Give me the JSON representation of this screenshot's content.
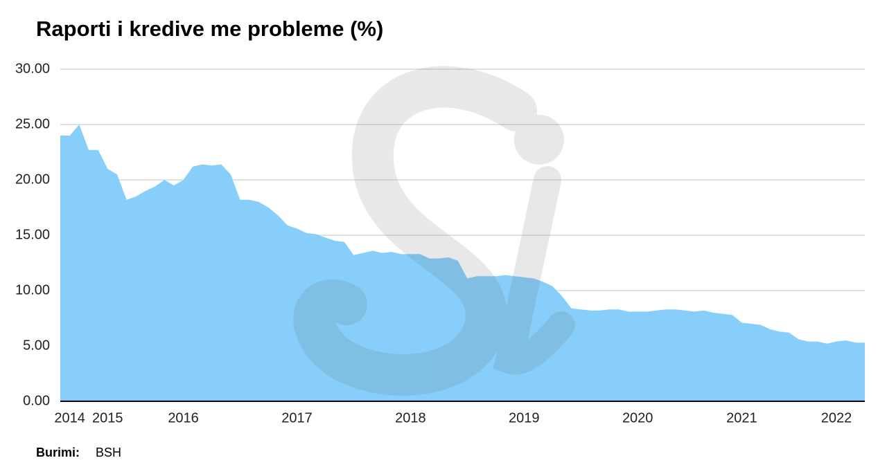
{
  "chart_data": {
    "type": "area",
    "title": "Raporti i kredive me probleme (%)",
    "source_label": "Burimi:",
    "source": "BSH",
    "color": "#87cffa",
    "grid": true,
    "ylim": [
      0,
      30
    ],
    "yticks": [
      {
        "value": 0,
        "label": "0.00"
      },
      {
        "value": 5,
        "label": "5.00"
      },
      {
        "value": 10,
        "label": "10.00"
      },
      {
        "value": 15,
        "label": "15.00"
      },
      {
        "value": 20,
        "label": "20.00"
      },
      {
        "value": 25,
        "label": "25.00"
      },
      {
        "value": 30,
        "label": "30.00"
      }
    ],
    "categories": [
      null,
      "2014",
      null,
      null,
      null,
      "2015",
      null,
      null,
      null,
      null,
      null,
      null,
      null,
      "2016",
      null,
      null,
      null,
      null,
      null,
      null,
      null,
      null,
      null,
      null,
      null,
      "2017",
      null,
      null,
      null,
      null,
      null,
      null,
      null,
      null,
      null,
      null,
      null,
      "2018",
      null,
      null,
      null,
      null,
      null,
      null,
      null,
      null,
      null,
      null,
      null,
      "2019",
      null,
      null,
      null,
      null,
      null,
      null,
      null,
      null,
      null,
      null,
      null,
      "2020",
      null,
      null,
      null,
      null,
      null,
      null,
      null,
      null,
      null,
      null,
      "2021",
      null,
      null,
      null,
      null,
      null,
      null,
      null,
      null,
      null,
      "2022",
      null,
      null,
      null
    ],
    "values": [
      24.0,
      24.0,
      25.0,
      22.7,
      22.7,
      21.0,
      20.5,
      18.2,
      18.5,
      19.0,
      19.4,
      20.0,
      19.5,
      20.0,
      21.2,
      21.4,
      21.3,
      21.4,
      20.5,
      18.2,
      18.2,
      18.0,
      17.5,
      16.8,
      15.9,
      15.6,
      15.2,
      15.1,
      14.8,
      14.5,
      14.4,
      13.2,
      13.4,
      13.6,
      13.4,
      13.5,
      13.3,
      13.3,
      13.3,
      12.9,
      12.9,
      13.0,
      12.7,
      11.1,
      11.3,
      11.3,
      11.3,
      11.4,
      11.3,
      11.2,
      11.1,
      10.8,
      10.4,
      9.5,
      8.4,
      8.3,
      8.2,
      8.2,
      8.3,
      8.3,
      8.1,
      8.1,
      8.1,
      8.2,
      8.3,
      8.3,
      8.2,
      8.1,
      8.2,
      8.0,
      7.9,
      7.8,
      7.1,
      7.0,
      6.9,
      6.5,
      6.3,
      6.2,
      5.6,
      5.4,
      5.4,
      5.2,
      5.4,
      5.5,
      5.3,
      5.3
    ]
  }
}
